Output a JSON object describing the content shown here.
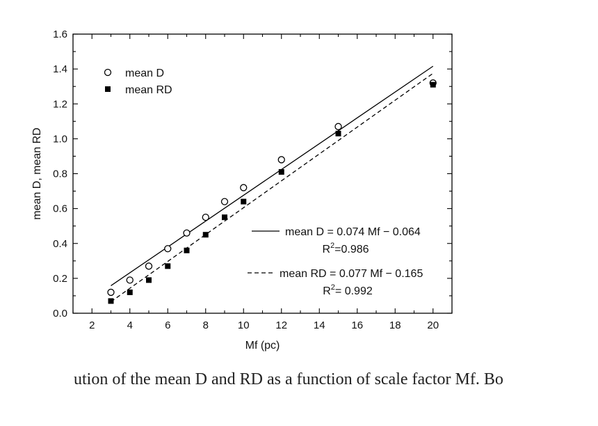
{
  "chart_data": {
    "type": "scatter",
    "xlabel": "Mf (pc)",
    "ylabel": "mean D, mean RD",
    "xlim": [
      1,
      21
    ],
    "ylim": [
      0,
      1.6
    ],
    "xticks": [
      2,
      4,
      6,
      8,
      10,
      12,
      14,
      16,
      18,
      20
    ],
    "yticks": [
      "0.0",
      "0.2",
      "0.4",
      "0.6",
      "0.8",
      "1.0",
      "1.2",
      "1.4",
      "1.6"
    ],
    "grid": false,
    "legend_position": "top-left",
    "series": [
      {
        "name": "mean D",
        "marker": "open-circle",
        "x": [
          3,
          4,
          5,
          6,
          7,
          8,
          9,
          10,
          12,
          15,
          20
        ],
        "y": [
          0.12,
          0.19,
          0.27,
          0.37,
          0.46,
          0.55,
          0.64,
          0.72,
          0.88,
          1.07,
          1.32
        ]
      },
      {
        "name": "mean RD",
        "marker": "filled-square",
        "x": [
          3,
          4,
          5,
          6,
          7,
          8,
          9,
          10,
          12,
          15,
          20
        ],
        "y": [
          0.07,
          0.12,
          0.19,
          0.27,
          0.36,
          0.45,
          0.55,
          0.64,
          0.81,
          1.03,
          1.31
        ]
      }
    ],
    "fits": [
      {
        "series": "mean D",
        "style": "solid",
        "slope": 0.074,
        "intercept": -0.064,
        "x_range": [
          3,
          20
        ],
        "equation": "mean D = 0.074 Mf − 0.064",
        "r2_label": "R",
        "r2_value": "=0.986"
      },
      {
        "series": "mean RD",
        "style": "dashed",
        "slope": 0.077,
        "intercept": -0.165,
        "x_range": [
          3,
          20
        ],
        "equation": "mean RD = 0.077 Mf − 0.165",
        "r2_label": "R",
        "r2_value": "= 0.992"
      }
    ]
  },
  "caption": {
    "text": "ution of the mean D and RD as a function of scale factor Mf. Bo"
  }
}
